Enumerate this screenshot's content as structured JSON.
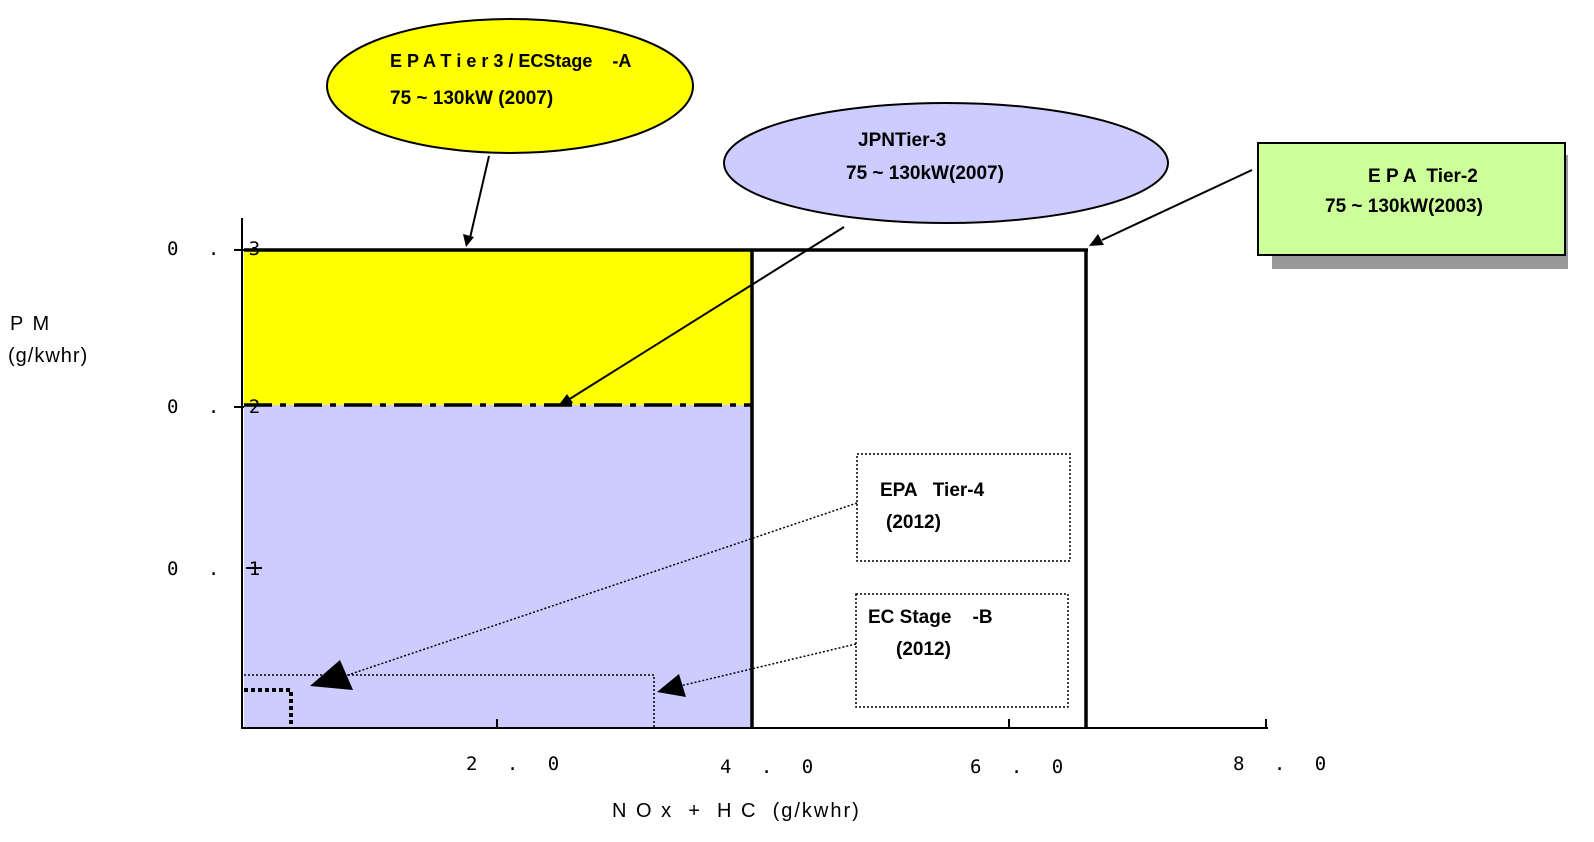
{
  "y_axis": {
    "title_line1": "P M",
    "title_line2": "(g/kwhr)",
    "ticks": [
      "0 . 3",
      "0 . 2",
      "0 . 1"
    ]
  },
  "x_axis": {
    "title": "N O x  +  H C  (g/kwhr)",
    "ticks": [
      "2 . 0",
      "4 . 0",
      "6 . 0",
      "8 . 0"
    ]
  },
  "callouts": {
    "epa_tier3": {
      "line1": "E P A T i e r 3 / ECStage    -A",
      "line2": "75 ~ 130kW (2007)",
      "color": "#ffff00"
    },
    "jpn_tier3": {
      "line1": "JPNTier-3",
      "line2": "75 ~ 130kW(2007)",
      "color": "#ccccff"
    },
    "epa_tier2": {
      "line1": "E P A  Tier-2",
      "line2": "75 ~ 130kW(2003)",
      "color": "#ccff99"
    },
    "epa_tier4": {
      "line1": "EPA   Tier-4",
      "line2": "(2012)"
    },
    "ec_stage_b": {
      "line1": "EC Stage    -B",
      "line2": "(2012)"
    }
  },
  "chart_data": {
    "type": "area",
    "x_range": [
      0,
      8.0
    ],
    "y_range": [
      0,
      0.3
    ],
    "regions": [
      {
        "id": "epa_tier3_ec_stage_a",
        "nox_hc_max": 4.0,
        "pm_max": 0.3,
        "fill": "#ffff00"
      },
      {
        "id": "jpn_tier3",
        "nox_hc_max": 4.0,
        "pm_max": 0.2,
        "fill": "#ccccff"
      },
      {
        "id": "epa_tier2",
        "nox_hc_max": 6.6,
        "pm_max": 0.3
      },
      {
        "id": "ec_stage_b",
        "nox_hc_max": 3.3,
        "pm_max": 0.025
      },
      {
        "id": "epa_tier4",
        "nox_hc_max": 0.4,
        "pm_max": 0.02
      }
    ]
  }
}
